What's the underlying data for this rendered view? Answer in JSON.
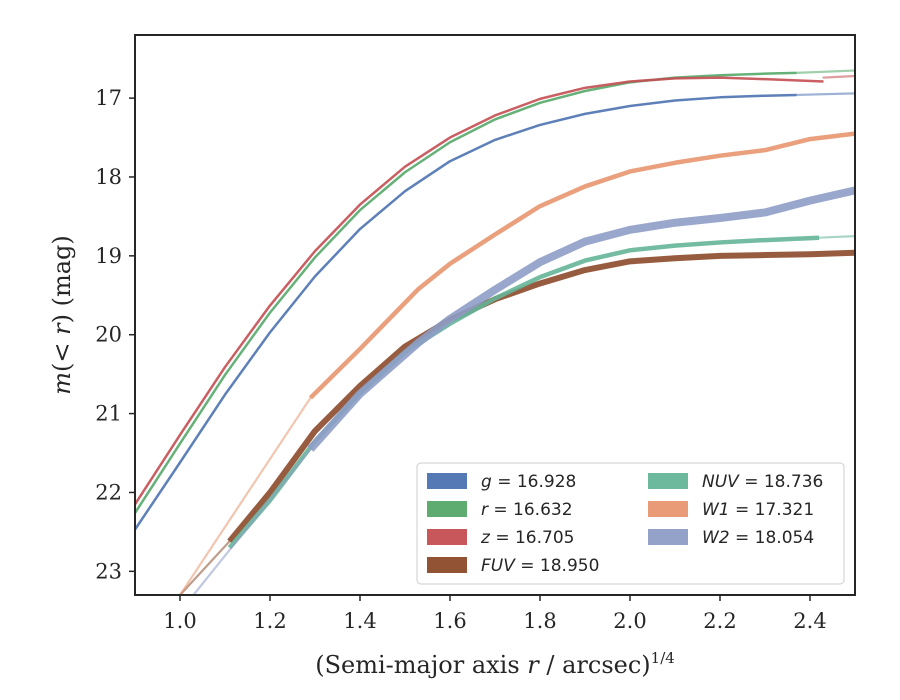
{
  "chart_data": {
    "type": "line",
    "xlabel": "(Semi-major axis r / arcsec)",
    "xlabel_prefix": "(Semi-major axis ",
    "xlabel_var": "r",
    "xlabel_suffix": " / arcsec)",
    "xlabel_exp": "1/4",
    "ylabel": "m(< r) (mag)",
    "ylabel_var": "m",
    "ylabel_mid": "(< ",
    "ylabel_var2": "r",
    "ylabel_suffix": ") (mag)",
    "xlim": [
      0.9,
      2.5
    ],
    "ylim": [
      23.3,
      16.2
    ],
    "y_inverted": true,
    "xticks": [
      1.0,
      1.2,
      1.4,
      1.6,
      1.8,
      2.0,
      2.2,
      2.4
    ],
    "xtick_labels": [
      "1.0",
      "1.2",
      "1.4",
      "1.6",
      "1.8",
      "2.0",
      "2.2",
      "2.4"
    ],
    "yticks": [
      17,
      18,
      19,
      20,
      21,
      22,
      23
    ],
    "ytick_labels": [
      "17",
      "18",
      "19",
      "20",
      "21",
      "22",
      "23"
    ],
    "grid": false,
    "legend_position": "lower-right",
    "series": [
      {
        "name": "g = 16.928",
        "band": "g",
        "value": "16.928",
        "color": "#4c72b0",
        "x": [
          0.9,
          1.0,
          1.1,
          1.2,
          1.3,
          1.4,
          1.5,
          1.6,
          1.7,
          1.8,
          1.9,
          2.0,
          2.1,
          2.2,
          2.3,
          2.37
        ],
        "y": [
          22.47,
          21.62,
          20.76,
          19.97,
          19.26,
          18.66,
          18.18,
          17.8,
          17.53,
          17.34,
          17.2,
          17.1,
          17.03,
          16.99,
          16.97,
          16.96
        ],
        "width": 2.5,
        "ext_x": [
          2.37,
          2.5
        ],
        "ext_y": [
          16.96,
          16.94
        ]
      },
      {
        "name": "r = 16.632",
        "band": "r",
        "value": "16.632",
        "color": "#55a868",
        "x": [
          0.9,
          1.0,
          1.1,
          1.2,
          1.3,
          1.4,
          1.5,
          1.6,
          1.7,
          1.8,
          1.9,
          2.0,
          2.1,
          2.2,
          2.3,
          2.37
        ],
        "y": [
          22.26,
          21.38,
          20.51,
          19.72,
          19.02,
          18.42,
          17.94,
          17.56,
          17.27,
          17.06,
          16.91,
          16.8,
          16.74,
          16.71,
          16.69,
          16.68
        ],
        "width": 2.5,
        "ext_x": [
          2.37,
          2.5
        ],
        "ext_y": [
          16.68,
          16.65
        ]
      },
      {
        "name": "z = 16.705",
        "band": "z",
        "value": "16.705",
        "color": "#c44e52",
        "x": [
          0.9,
          1.0,
          1.1,
          1.2,
          1.3,
          1.4,
          1.5,
          1.6,
          1.7,
          1.8,
          1.9,
          2.0,
          2.1,
          2.2,
          2.3,
          2.43
        ],
        "y": [
          22.15,
          21.27,
          20.41,
          19.63,
          18.94,
          18.35,
          17.87,
          17.5,
          17.22,
          17.01,
          16.87,
          16.79,
          16.75,
          16.74,
          16.76,
          16.79
        ],
        "width": 2.5,
        "ext_x": [
          2.43,
          2.5
        ],
        "ext_y": [
          16.74,
          16.72
        ]
      },
      {
        "name": "FUV = 18.950",
        "band": "FUV",
        "value": "18.950",
        "color": "#8c4a2a",
        "x": [
          1.11,
          1.2,
          1.3,
          1.4,
          1.5,
          1.6,
          1.7,
          1.8,
          1.9,
          2.0,
          2.1,
          2.2,
          2.3,
          2.4,
          2.5
        ],
        "y": [
          22.62,
          22.0,
          21.22,
          20.65,
          20.15,
          19.81,
          19.55,
          19.35,
          19.18,
          19.07,
          19.03,
          19.0,
          18.99,
          18.98,
          18.96
        ],
        "width": 6,
        "ext_x": [
          1.0,
          1.11
        ],
        "ext_y": [
          23.3,
          22.62
        ]
      },
      {
        "name": "NUV = 18.736",
        "band": "NUV",
        "value": "18.736",
        "color": "#64b598",
        "x": [
          1.11,
          1.2,
          1.3,
          1.4,
          1.5,
          1.6,
          1.7,
          1.8,
          1.9,
          2.0,
          2.1,
          2.2,
          2.3,
          2.42
        ],
        "y": [
          22.7,
          22.1,
          21.35,
          20.74,
          20.22,
          19.86,
          19.54,
          19.27,
          19.06,
          18.93,
          18.87,
          18.83,
          18.8,
          18.77
        ],
        "width": 4.5,
        "ext_x": [
          2.42,
          2.5
        ],
        "ext_y": [
          18.77,
          18.75
        ]
      },
      {
        "name": "W1 = 17.321",
        "band": "W1",
        "value": "17.321",
        "color": "#e8956f",
        "x": [
          1.29,
          1.4,
          1.53,
          1.6,
          1.7,
          1.8,
          1.9,
          2.0,
          2.1,
          2.2,
          2.3,
          2.4,
          2.5
        ],
        "y": [
          20.8,
          20.18,
          19.42,
          19.1,
          18.73,
          18.37,
          18.12,
          17.93,
          17.82,
          17.73,
          17.66,
          17.52,
          17.45
        ],
        "width": 4.5,
        "ext_x": [
          1.0,
          1.29
        ],
        "ext_y": [
          23.3,
          20.8
        ]
      },
      {
        "name": "W2 = 18.054",
        "band": "W2",
        "value": "18.054",
        "color": "#8e9dc6",
        "x": [
          1.29,
          1.4,
          1.53,
          1.6,
          1.7,
          1.8,
          1.9,
          2.0,
          2.1,
          2.2,
          2.3,
          2.4,
          2.5
        ],
        "y": [
          21.45,
          20.75,
          20.1,
          19.8,
          19.43,
          19.08,
          18.82,
          18.67,
          18.58,
          18.52,
          18.45,
          18.3,
          18.17
        ],
        "width": 8,
        "ext_x": [
          1.03,
          1.29
        ],
        "ext_y": [
          23.3,
          21.45
        ]
      }
    ]
  }
}
